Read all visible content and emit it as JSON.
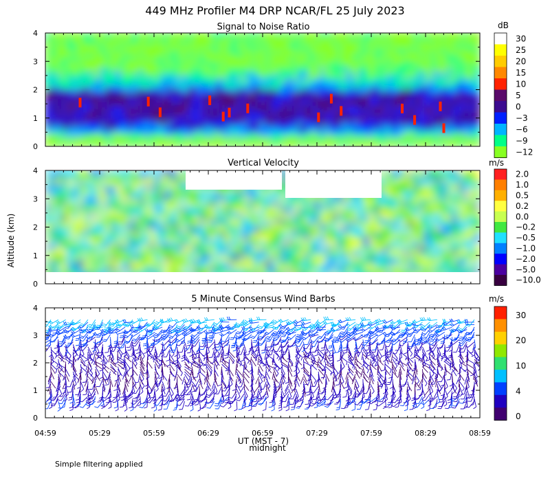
{
  "chart_data": {
    "type": "heatmap",
    "title": "449 MHz Profiler M4 DRP NCAR/FL 25 July 2023",
    "ylabel": "Altitude (km)",
    "xlabel": "UT  (MST - 7)",
    "xlabel_note": "midnight",
    "xticks": [
      "04:59",
      "05:29",
      "05:59",
      "06:29",
      "06:59",
      "07:29",
      "07:59",
      "08:29",
      "08:59"
    ],
    "xlim_hours": [
      4.9833,
      8.9833
    ],
    "footnote": "Simple filtering applied",
    "panels": [
      {
        "title": "Signal to Noise Ratio",
        "unit": "dB",
        "ylim": [
          0,
          4
        ],
        "yticks": [
          "0",
          "1",
          "2",
          "3",
          "4"
        ],
        "colorbar_labels": [
          "30",
          "25",
          "20",
          "15",
          "10",
          "5",
          "0",
          "−3",
          "−6",
          "−9",
          "−12"
        ],
        "colorbar_colors": [
          "#ffffff",
          "#ffff00",
          "#ffcc00",
          "#ff8800",
          "#ff2200",
          "#5a0a6a",
          "#3c0b90",
          "#0020ff",
          "#00b4ff",
          "#00ff88",
          "#88ff22"
        ],
        "profile": [
          {
            "alt": 0.3,
            "level": 10
          },
          {
            "alt": 0.5,
            "level": 8
          },
          {
            "alt": 0.7,
            "level": 7
          },
          {
            "alt": 1.0,
            "level": 6
          },
          {
            "alt": 1.3,
            "level": 6
          },
          {
            "alt": 1.6,
            "level": 6
          },
          {
            "alt": 1.9,
            "level": 6
          },
          {
            "alt": 2.1,
            "level": 8
          },
          {
            "alt": 2.5,
            "level": 9
          },
          {
            "alt": 3.0,
            "level": 10
          },
          {
            "alt": 3.5,
            "level": 10
          },
          {
            "alt": 4.0,
            "level": 10
          }
        ]
      },
      {
        "title": "Vertical Velocity",
        "unit": "m/s",
        "ylim": [
          0,
          4
        ],
        "yticks": [
          "0",
          "1",
          "2",
          "3",
          "4"
        ],
        "colorbar_labels": [
          "2.0",
          "1.0",
          "0.5",
          "0.2",
          "0.0",
          "−0.2",
          "−0.5",
          "−1.0",
          "−2.0",
          "−5.0",
          "−10.0"
        ],
        "colorbar_colors": [
          "#ff2020",
          "#ff7f00",
          "#ffb000",
          "#ffff40",
          "#c8ff50",
          "#40e840",
          "#20e0ff",
          "#0080ff",
          "#0000ff",
          "#4b00a0",
          "#380040"
        ],
        "mean_velocity_ms": 0.0
      },
      {
        "title": "5 Minute Consensus Wind Barbs",
        "unit": "m/s",
        "ylim": [
          0,
          4
        ],
        "yticks": [
          "0",
          "1",
          "2",
          "3",
          "4"
        ],
        "colorbar_labels": [
          "30",
          "20",
          "10",
          "4",
          "0"
        ],
        "colorbar_colors": [
          "#ff2000",
          "#ff9000",
          "#ffd000",
          "#90e800",
          "#30e070",
          "#00c0ff",
          "#0040ff",
          "#2000c0",
          "#400070"
        ],
        "profile": [
          {
            "alt": 0.8,
            "speed_ms": 6,
            "dir_deg": 200
          },
          {
            "alt": 1.2,
            "speed_ms": 2,
            "dir_deg": 180
          },
          {
            "alt": 1.6,
            "speed_ms": 2,
            "dir_deg": 170
          },
          {
            "alt": 2.0,
            "speed_ms": 2,
            "dir_deg": 150
          },
          {
            "alt": 2.4,
            "speed_ms": 3,
            "dir_deg": 160
          },
          {
            "alt": 2.8,
            "speed_ms": 6,
            "dir_deg": 200
          },
          {
            "alt": 3.2,
            "speed_ms": 9,
            "dir_deg": 230
          },
          {
            "alt": 3.6,
            "speed_ms": 12,
            "dir_deg": 240
          }
        ]
      }
    ]
  }
}
